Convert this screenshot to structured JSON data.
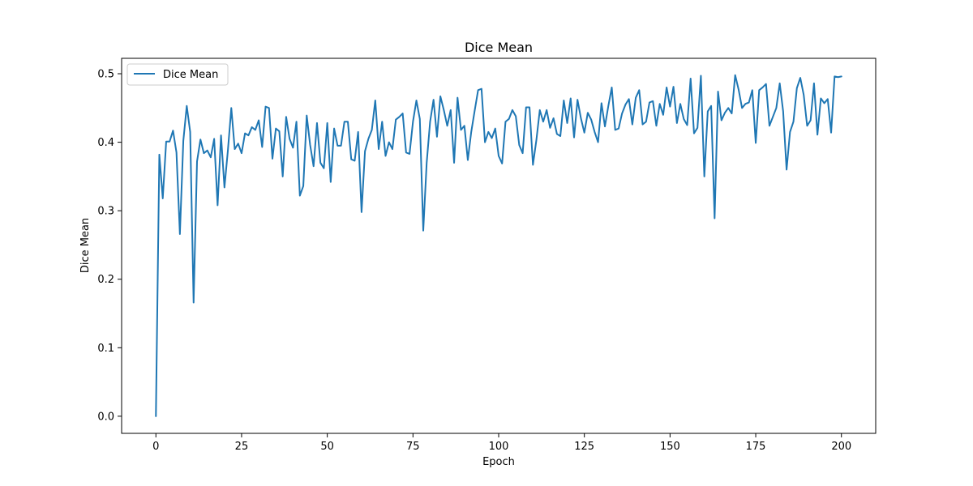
{
  "chart_data": {
    "type": "line",
    "title": "Dice Mean",
    "xlabel": "Epoch",
    "ylabel": "Dice Mean",
    "xlim": [
      -10,
      210
    ],
    "ylim": [
      -0.025,
      0.5225
    ],
    "xticks": [
      0,
      25,
      50,
      75,
      100,
      125,
      150,
      175,
      200
    ],
    "yticks": [
      0.0,
      0.1,
      0.2,
      0.3,
      0.4,
      0.5
    ],
    "grid": false,
    "legend_position": "top-left",
    "series": [
      {
        "name": "Dice Mean",
        "color": "#1f77b4",
        "x": [
          0,
          1,
          2,
          3,
          4,
          5,
          6,
          7,
          8,
          9,
          10,
          11,
          12,
          13,
          14,
          15,
          16,
          17,
          18,
          19,
          20,
          21,
          22,
          23,
          24,
          25,
          26,
          27,
          28,
          29,
          30,
          31,
          32,
          33,
          34,
          35,
          36,
          37,
          38,
          39,
          40,
          41,
          42,
          43,
          44,
          45,
          46,
          47,
          48,
          49,
          50,
          51,
          52,
          53,
          54,
          55,
          56,
          57,
          58,
          59,
          60,
          61,
          62,
          63,
          64,
          65,
          66,
          67,
          68,
          69,
          70,
          71,
          72,
          73,
          74,
          75,
          76,
          77,
          78,
          79,
          80,
          81,
          82,
          83,
          84,
          85,
          86,
          87,
          88,
          89,
          90,
          91,
          92,
          93,
          94,
          95,
          96,
          97,
          98,
          99,
          100,
          101,
          102,
          103,
          104,
          105,
          106,
          107,
          108,
          109,
          110,
          111,
          112,
          113,
          114,
          115,
          116,
          117,
          118,
          119,
          120,
          121,
          122,
          123,
          124,
          125,
          126,
          127,
          128,
          129,
          130,
          131,
          132,
          133,
          134,
          135,
          136,
          137,
          138,
          139,
          140,
          141,
          142,
          143,
          144,
          145,
          146,
          147,
          148,
          149,
          150,
          151,
          152,
          153,
          154,
          155,
          156,
          157,
          158,
          159,
          160,
          161,
          162,
          163,
          164,
          165,
          166,
          167,
          168,
          169,
          170,
          171,
          172,
          173,
          174,
          175,
          176,
          177,
          178,
          179,
          180,
          181,
          182,
          183,
          184,
          185,
          186,
          187,
          188,
          189,
          190,
          191,
          192,
          193,
          194,
          195,
          196,
          197,
          198,
          199,
          200
        ],
        "y": [
          0.0,
          0.382,
          0.318,
          0.401,
          0.401,
          0.417,
          0.385,
          0.266,
          0.402,
          0.453,
          0.415,
          0.166,
          0.372,
          0.404,
          0.384,
          0.388,
          0.378,
          0.405,
          0.308,
          0.41,
          0.334,
          0.388,
          0.45,
          0.39,
          0.398,
          0.384,
          0.413,
          0.41,
          0.422,
          0.418,
          0.432,
          0.393,
          0.452,
          0.45,
          0.376,
          0.42,
          0.416,
          0.35,
          0.437,
          0.405,
          0.392,
          0.43,
          0.322,
          0.336,
          0.439,
          0.396,
          0.365,
          0.428,
          0.37,
          0.362,
          0.428,
          0.342,
          0.42,
          0.395,
          0.395,
          0.43,
          0.43,
          0.375,
          0.373,
          0.415,
          0.298,
          0.387,
          0.405,
          0.418,
          0.461,
          0.39,
          0.43,
          0.38,
          0.4,
          0.39,
          0.433,
          0.437,
          0.442,
          0.385,
          0.383,
          0.43,
          0.461,
          0.434,
          0.271,
          0.37,
          0.43,
          0.462,
          0.408,
          0.467,
          0.447,
          0.424,
          0.447,
          0.37,
          0.465,
          0.418,
          0.424,
          0.374,
          0.415,
          0.446,
          0.476,
          0.478,
          0.4,
          0.415,
          0.406,
          0.42,
          0.38,
          0.369,
          0.43,
          0.434,
          0.447,
          0.438,
          0.396,
          0.384,
          0.451,
          0.451,
          0.367,
          0.403,
          0.447,
          0.43,
          0.447,
          0.421,
          0.435,
          0.412,
          0.409,
          0.461,
          0.428,
          0.464,
          0.407,
          0.462,
          0.435,
          0.414,
          0.443,
          0.433,
          0.415,
          0.4,
          0.457,
          0.423,
          0.453,
          0.48,
          0.418,
          0.42,
          0.442,
          0.455,
          0.463,
          0.426,
          0.465,
          0.476,
          0.426,
          0.43,
          0.458,
          0.46,
          0.424,
          0.456,
          0.44,
          0.48,
          0.452,
          0.481,
          0.428,
          0.456,
          0.434,
          0.425,
          0.493,
          0.413,
          0.421,
          0.497,
          0.35,
          0.445,
          0.453,
          0.289,
          0.474,
          0.432,
          0.443,
          0.45,
          0.442,
          0.498,
          0.477,
          0.45,
          0.456,
          0.458,
          0.476,
          0.399,
          0.476,
          0.48,
          0.485,
          0.424,
          0.437,
          0.45,
          0.486,
          0.445,
          0.36,
          0.415,
          0.43,
          0.479,
          0.494,
          0.469,
          0.424,
          0.432,
          0.486,
          0.411,
          0.464,
          0.457,
          0.463,
          0.414,
          0.496,
          0.495,
          0.496
        ]
      }
    ]
  }
}
